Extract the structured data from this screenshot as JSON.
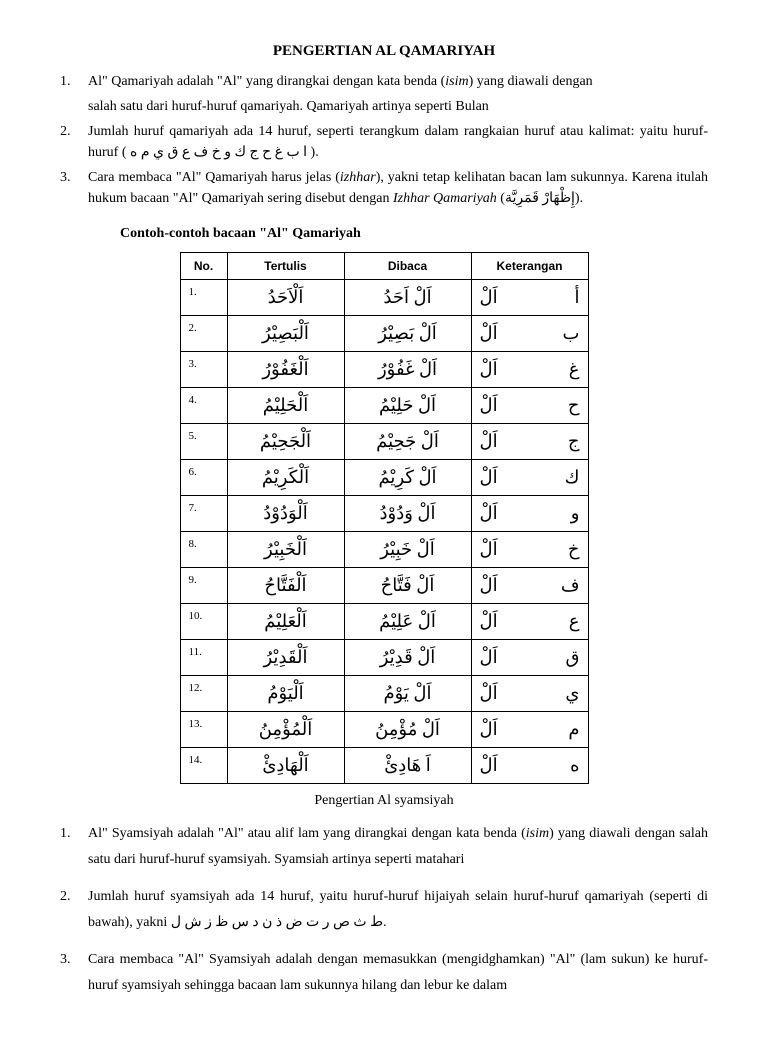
{
  "title": "PENGERTIAN AL QAMARIYAH",
  "p1": {
    "num": "1.",
    "line1_a": "Al\" Qamariyah adalah \"Al\" yang dirangkai dengan kata benda (",
    "line1_i": "isim",
    "line1_b": ") yang diawali dengan",
    "line2": "salah satu dari huruf-huruf qamariyah. Qamariyah artinya seperti Bulan"
  },
  "p2": {
    "num": "2.",
    "text_a": "Jumlah huruf qamariyah ada 14 huruf, seperti terangkum dalam rangkaian huruf atau kalimat: yaitu huruf-huruf ( ",
    "arabic": "ا ب غ ح ج ك و خ ف ع ق ي م ه",
    "text_b": " )."
  },
  "p3": {
    "num": "3.",
    "text_a": "Cara membaca \"Al\" Qamariyah harus jelas (",
    "italic1": "izhhar",
    "text_b": "), yakni tetap kelihatan bacan lam sukunnya. Karena itulah hukum bacaan \"Al\" Qamariyah sering disebut dengan ",
    "italic2": "Izhhar Qamariyah",
    "text_c": " (",
    "arabic": "إِظْهَارْ قَمَرِيَّة",
    "text_d": ")."
  },
  "subhead": "Contoh-contoh bacaan \"Al\" Qamariyah",
  "columns": [
    "No.",
    "Tertulis",
    "Dibaca",
    "Keterangan"
  ],
  "rows": [
    {
      "no": "1.",
      "tertulis": "اَلْاَحَدُ",
      "dibaca": "اَلْ اَحَدُ",
      "ket_l": "اَلْ",
      "ket_r": "أ"
    },
    {
      "no": "2.",
      "tertulis": "اَلْبَصِيْرُ",
      "dibaca": "اَلْ بَصِيْرُ",
      "ket_l": "اَلْ",
      "ket_r": "ب"
    },
    {
      "no": "3.",
      "tertulis": "اَلْغَفُوْرُ",
      "dibaca": "اَلْ غَفُوْرُ",
      "ket_l": "اَلْ",
      "ket_r": "غ"
    },
    {
      "no": "4.",
      "tertulis": "اَلْحَلِيْمُ",
      "dibaca": "اَلْ حَلِيْمُ",
      "ket_l": "اَلْ",
      "ket_r": "ح"
    },
    {
      "no": "5.",
      "tertulis": "اَلْجَحِيْمُ",
      "dibaca": "اَلْ جَحِيْمُ",
      "ket_l": "اَلْ",
      "ket_r": "ج"
    },
    {
      "no": "6.",
      "tertulis": "اَلْكَرِيْمُ",
      "dibaca": "اَلْ كَرِيْمُ",
      "ket_l": "اَلْ",
      "ket_r": "ك"
    },
    {
      "no": "7.",
      "tertulis": "اَلْوَدُوْدُ",
      "dibaca": "اَلْ وَدُوْدُ",
      "ket_l": "اَلْ",
      "ket_r": "و"
    },
    {
      "no": "8.",
      "tertulis": "اَلْخَبِيْرُ",
      "dibaca": "اَلْ خَبِيْرُ",
      "ket_l": "اَلْ",
      "ket_r": "خ"
    },
    {
      "no": "9.",
      "tertulis": "اَلْفَتَّاحُ",
      "dibaca": "اَلْ فَتَّاحُ",
      "ket_l": "اَلْ",
      "ket_r": "ف"
    },
    {
      "no": "10.",
      "tertulis": "اَلْعَلِيْمُ",
      "dibaca": "اَلْ عَلِيْمُ",
      "ket_l": "اَلْ",
      "ket_r": "ع"
    },
    {
      "no": "11.",
      "tertulis": "اَلْقَدِيْرُ",
      "dibaca": "اَلْ قَدِيْرُ",
      "ket_l": "اَلْ",
      "ket_r": "ق"
    },
    {
      "no": "12.",
      "tertulis": "اَلْيَوْمُ",
      "dibaca": "اَلْ يَوْمُ",
      "ket_l": "اَلْ",
      "ket_r": "ي"
    },
    {
      "no": "13.",
      "tertulis": "اَلْمُؤْمِنُ",
      "dibaca": "اَلْ مُؤْمِنُ",
      "ket_l": "اَلْ",
      "ket_r": "م"
    },
    {
      "no": "14.",
      "tertulis": "اَلْهَادِئْ",
      "dibaca": "اَ هَادِئْ",
      "ket_l": "اَلْ",
      "ket_r": "ه"
    }
  ],
  "caption": "Pengertian Al syamsiyah",
  "s1": {
    "num": "1.",
    "a": "Al\" Syamsiyah adalah \"Al\" atau alif lam yang dirangkai dengan kata benda (",
    "i": "isim",
    "b": ") yang diawali dengan salah satu dari huruf-huruf syamsiyah. Syamsiah artinya seperti matahari"
  },
  "s2": {
    "num": "2.",
    "a": "Jumlah huruf syamsiyah ada 14 huruf, yaitu huruf-huruf hijaiyah selain huruf-huruf qamariyah (seperti di bawah), yakni ",
    "arabic": "ط ث ص ر ت ض ذ ن د س ظ ز ش ل"
  },
  "s3": {
    "num": "3.",
    "a": "Cara membaca \"Al\" Syamsiyah adalah dengan memasukkan (mengidghamkan) \"Al\" (lam sukun) ke huruf-huruf syamsiyah sehingga bacaan lam sukunnya hilang dan lebur ke dalam"
  }
}
